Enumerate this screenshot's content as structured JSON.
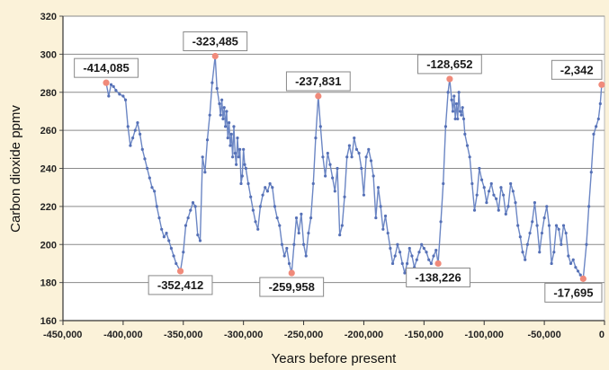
{
  "chart_data": {
    "type": "line",
    "title": "",
    "xlabel": "Years before present",
    "ylabel": "Carbon dioxide ppmv",
    "xlim": [
      -450000,
      0
    ],
    "ylim": [
      160,
      320
    ],
    "xticks": [
      -450000,
      -400000,
      -350000,
      -300000,
      -250000,
      -200000,
      -150000,
      -100000,
      -50000,
      0
    ],
    "xtick_labels": [
      "-450,000",
      "-400,000",
      "-350,000",
      "-300,000",
      "-250,000",
      "-200,000",
      "-150,000",
      "-100,000",
      "-50,000",
      "0"
    ],
    "yticks": [
      160,
      180,
      200,
      220,
      240,
      260,
      280,
      300,
      320
    ],
    "ytick_labels": [
      "160",
      "180",
      "200",
      "220",
      "240",
      "260",
      "280",
      "300",
      "320"
    ],
    "grid": "horizontal",
    "colors": {
      "line": "#6b86c4",
      "marker": "#5570b6",
      "highlight": "#f08a7a",
      "background": "#fbf2d9",
      "plot_bg": "#ffffff"
    },
    "series": [
      {
        "points": [
          [
            -414085,
            285
          ],
          [
            -412000,
            278
          ],
          [
            -410000,
            284
          ],
          [
            -408000,
            283
          ],
          [
            -406000,
            281
          ],
          [
            -403000,
            279
          ],
          [
            -400000,
            278
          ],
          [
            -398000,
            276
          ],
          [
            -396000,
            262
          ],
          [
            -394000,
            252
          ],
          [
            -392000,
            256
          ],
          [
            -390000,
            260
          ],
          [
            -388000,
            264
          ],
          [
            -386000,
            258
          ],
          [
            -384000,
            250
          ],
          [
            -382000,
            245
          ],
          [
            -380000,
            240
          ],
          [
            -378000,
            235
          ],
          [
            -376000,
            230
          ],
          [
            -374000,
            228
          ],
          [
            -372000,
            220
          ],
          [
            -370000,
            214
          ],
          [
            -368000,
            208
          ],
          [
            -366000,
            204
          ],
          [
            -364000,
            206
          ],
          [
            -362000,
            202
          ],
          [
            -360000,
            198
          ],
          [
            -358000,
            194
          ],
          [
            -356000,
            190
          ],
          [
            -352412,
            186
          ],
          [
            -350000,
            196
          ],
          [
            -348000,
            210
          ],
          [
            -346000,
            214
          ],
          [
            -344000,
            218
          ],
          [
            -342000,
            222
          ],
          [
            -340000,
            220
          ],
          [
            -338000,
            205
          ],
          [
            -336000,
            202
          ],
          [
            -334000,
            246
          ],
          [
            -332000,
            238
          ],
          [
            -330000,
            255
          ],
          [
            -328000,
            268
          ],
          [
            -326000,
            285
          ],
          [
            -323485,
            299
          ],
          [
            -322000,
            282
          ],
          [
            -320000,
            274
          ],
          [
            -319000,
            268
          ],
          [
            -318000,
            276
          ],
          [
            -317000,
            266
          ],
          [
            -316000,
            272
          ],
          [
            -315000,
            262
          ],
          [
            -314000,
            270
          ],
          [
            -313000,
            256
          ],
          [
            -312000,
            264
          ],
          [
            -311000,
            252
          ],
          [
            -310000,
            258
          ],
          [
            -309000,
            246
          ],
          [
            -308000,
            262
          ],
          [
            -307000,
            248
          ],
          [
            -306000,
            242
          ],
          [
            -305000,
            256
          ],
          [
            -304000,
            246
          ],
          [
            -303000,
            250
          ],
          [
            -302000,
            232
          ],
          [
            -301000,
            236
          ],
          [
            -300000,
            250
          ],
          [
            -299000,
            242
          ],
          [
            -298000,
            240
          ],
          [
            -296000,
            232
          ],
          [
            -294000,
            225
          ],
          [
            -292000,
            218
          ],
          [
            -290000,
            212
          ],
          [
            -288000,
            208
          ],
          [
            -286000,
            220
          ],
          [
            -284000,
            226
          ],
          [
            -282000,
            230
          ],
          [
            -280000,
            228
          ],
          [
            -278000,
            232
          ],
          [
            -276000,
            230
          ],
          [
            -274000,
            220
          ],
          [
            -272000,
            214
          ],
          [
            -270000,
            210
          ],
          [
            -268000,
            200
          ],
          [
            -266000,
            194
          ],
          [
            -264000,
            198
          ],
          [
            -262000,
            190
          ],
          [
            -259958,
            185
          ],
          [
            -258000,
            200
          ],
          [
            -256000,
            214
          ],
          [
            -254000,
            206
          ],
          [
            -252000,
            216
          ],
          [
            -250000,
            200
          ],
          [
            -248000,
            194
          ],
          [
            -246000,
            206
          ],
          [
            -244000,
            214
          ],
          [
            -242000,
            232
          ],
          [
            -240000,
            256
          ],
          [
            -237831,
            278
          ],
          [
            -236000,
            262
          ],
          [
            -234000,
            246
          ],
          [
            -232000,
            236
          ],
          [
            -230000,
            248
          ],
          [
            -228000,
            242
          ],
          [
            -226000,
            235
          ],
          [
            -224000,
            228
          ],
          [
            -222000,
            240
          ],
          [
            -220000,
            205
          ],
          [
            -218000,
            210
          ],
          [
            -216000,
            225
          ],
          [
            -214000,
            246
          ],
          [
            -212000,
            252
          ],
          [
            -210000,
            246
          ],
          [
            -208000,
            256
          ],
          [
            -206000,
            250
          ],
          [
            -204000,
            248
          ],
          [
            -202000,
            240
          ],
          [
            -200000,
            226
          ],
          [
            -198000,
            246
          ],
          [
            -196000,
            250
          ],
          [
            -194000,
            244
          ],
          [
            -192000,
            236
          ],
          [
            -190000,
            214
          ],
          [
            -188000,
            230
          ],
          [
            -186000,
            220
          ],
          [
            -184000,
            208
          ],
          [
            -182000,
            215
          ],
          [
            -180000,
            206
          ],
          [
            -178000,
            198
          ],
          [
            -176000,
            190
          ],
          [
            -174000,
            194
          ],
          [
            -172000,
            200
          ],
          [
            -170000,
            196
          ],
          [
            -168000,
            190
          ],
          [
            -166000,
            185
          ],
          [
            -164000,
            190
          ],
          [
            -162000,
            198
          ],
          [
            -160000,
            194
          ],
          [
            -158000,
            188
          ],
          [
            -156000,
            192
          ],
          [
            -154000,
            196
          ],
          [
            -152000,
            200
          ],
          [
            -150000,
            198
          ],
          [
            -148000,
            196
          ],
          [
            -146000,
            192
          ],
          [
            -144000,
            190
          ],
          [
            -142000,
            194
          ],
          [
            -140000,
            197
          ],
          [
            -138226,
            190
          ],
          [
            -136000,
            212
          ],
          [
            -134000,
            232
          ],
          [
            -132000,
            262
          ],
          [
            -130000,
            280
          ],
          [
            -128652,
            287
          ],
          [
            -127000,
            276
          ],
          [
            -126000,
            270
          ],
          [
            -125000,
            278
          ],
          [
            -124000,
            266
          ],
          [
            -123000,
            274
          ],
          [
            -122000,
            266
          ],
          [
            -121000,
            280
          ],
          [
            -120000,
            270
          ],
          [
            -119000,
            268
          ],
          [
            -118000,
            272
          ],
          [
            -117000,
            266
          ],
          [
            -116000,
            258
          ],
          [
            -114000,
            252
          ],
          [
            -112000,
            246
          ],
          [
            -110000,
            232
          ],
          [
            -108000,
            218
          ],
          [
            -106000,
            226
          ],
          [
            -104000,
            240
          ],
          [
            -102000,
            234
          ],
          [
            -100000,
            230
          ],
          [
            -98000,
            222
          ],
          [
            -96000,
            228
          ],
          [
            -94000,
            232
          ],
          [
            -92000,
            226
          ],
          [
            -90000,
            224
          ],
          [
            -88000,
            218
          ],
          [
            -86000,
            230
          ],
          [
            -84000,
            226
          ],
          [
            -82000,
            216
          ],
          [
            -80000,
            220
          ],
          [
            -78000,
            232
          ],
          [
            -76000,
            228
          ],
          [
            -74000,
            222
          ],
          [
            -72000,
            210
          ],
          [
            -70000,
            204
          ],
          [
            -68000,
            196
          ],
          [
            -66000,
            192
          ],
          [
            -64000,
            200
          ],
          [
            -62000,
            206
          ],
          [
            -60000,
            212
          ],
          [
            -58000,
            222
          ],
          [
            -56000,
            210
          ],
          [
            -54000,
            196
          ],
          [
            -52000,
            206
          ],
          [
            -50000,
            214
          ],
          [
            -48000,
            220
          ],
          [
            -46000,
            210
          ],
          [
            -44000,
            190
          ],
          [
            -42000,
            196
          ],
          [
            -40000,
            210
          ],
          [
            -38000,
            208
          ],
          [
            -36000,
            200
          ],
          [
            -34000,
            210
          ],
          [
            -32000,
            206
          ],
          [
            -30000,
            194
          ],
          [
            -28000,
            190
          ],
          [
            -26000,
            192
          ],
          [
            -24000,
            188
          ],
          [
            -22000,
            186
          ],
          [
            -20000,
            184
          ],
          [
            -17695,
            182
          ],
          [
            -15000,
            200
          ],
          [
            -13000,
            220
          ],
          [
            -11000,
            238
          ],
          [
            -9000,
            258
          ],
          [
            -7000,
            262
          ],
          [
            -5000,
            266
          ],
          [
            -3500,
            274
          ],
          [
            -2342,
            284
          ]
        ]
      }
    ],
    "annotations": [
      {
        "label": "-414,085",
        "x": -414085,
        "y": 285,
        "side": "above"
      },
      {
        "label": "-323,485",
        "x": -323485,
        "y": 299,
        "side": "above"
      },
      {
        "label": "-237,831",
        "x": -237831,
        "y": 278,
        "side": "above"
      },
      {
        "label": "-128,652",
        "x": -128652,
        "y": 287,
        "side": "above"
      },
      {
        "label": "-2,342",
        "x": -2342,
        "y": 284,
        "side": "above"
      },
      {
        "label": "-352,412",
        "x": -352412,
        "y": 186,
        "side": "below"
      },
      {
        "label": "-259,958",
        "x": -259958,
        "y": 185,
        "side": "below"
      },
      {
        "label": "-138,226",
        "x": -138226,
        "y": 190,
        "side": "below"
      },
      {
        "label": "-17,695",
        "x": -17695,
        "y": 182,
        "side": "below"
      }
    ]
  }
}
